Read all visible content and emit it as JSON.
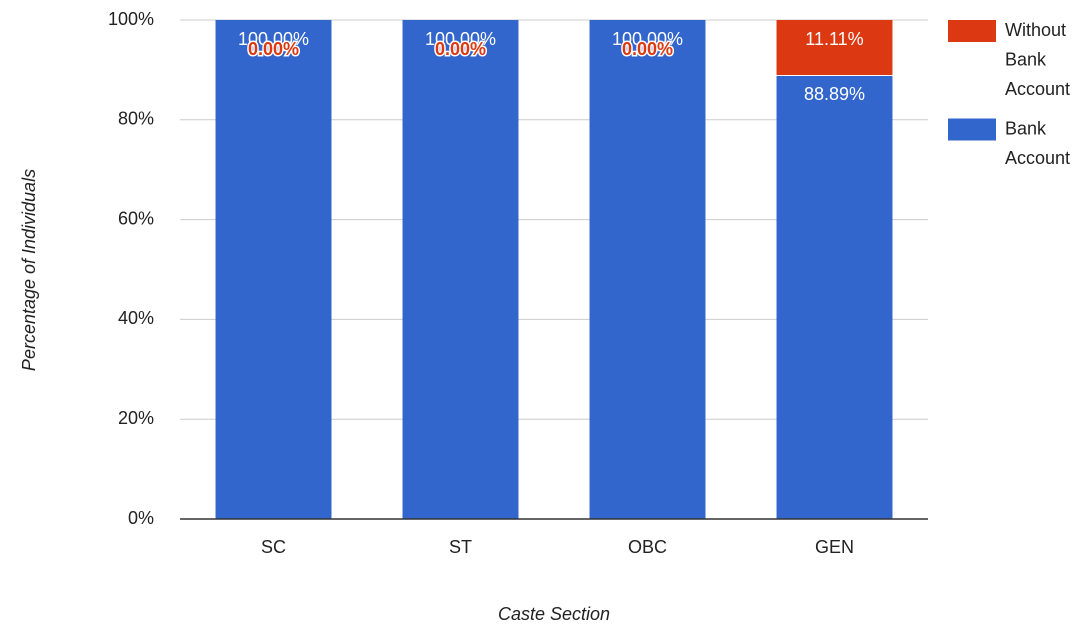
{
  "chart_data": {
    "type": "stacked_bar",
    "categories": [
      "SC",
      "ST",
      "OBC",
      "GEN"
    ],
    "series": [
      {
        "name": "Bank Account",
        "color": "#3366cc",
        "values": [
          100,
          100,
          100,
          88.89
        ],
        "value_labels": [
          "100.00%",
          "100.00%",
          "100.00%",
          "88.89%"
        ]
      },
      {
        "name": "Without Bank Account",
        "color": "#dc3912",
        "values": [
          0,
          0,
          0,
          11.11
        ],
        "value_labels": [
          "0.00%",
          "0.00%",
          "0.00%",
          "11.11%"
        ]
      }
    ],
    "ylim": [
      0,
      100
    ],
    "yticks": [
      {
        "value": 0,
        "label": "0%"
      },
      {
        "value": 20,
        "label": "20%"
      },
      {
        "value": 40,
        "label": "40%"
      },
      {
        "value": 60,
        "label": "60%"
      },
      {
        "value": 80,
        "label": "80%"
      },
      {
        "value": 100,
        "label": "100%"
      }
    ],
    "xlabel": "Caste Section",
    "ylabel": "Percentage of Individuals",
    "grid": true,
    "legend": "right"
  }
}
